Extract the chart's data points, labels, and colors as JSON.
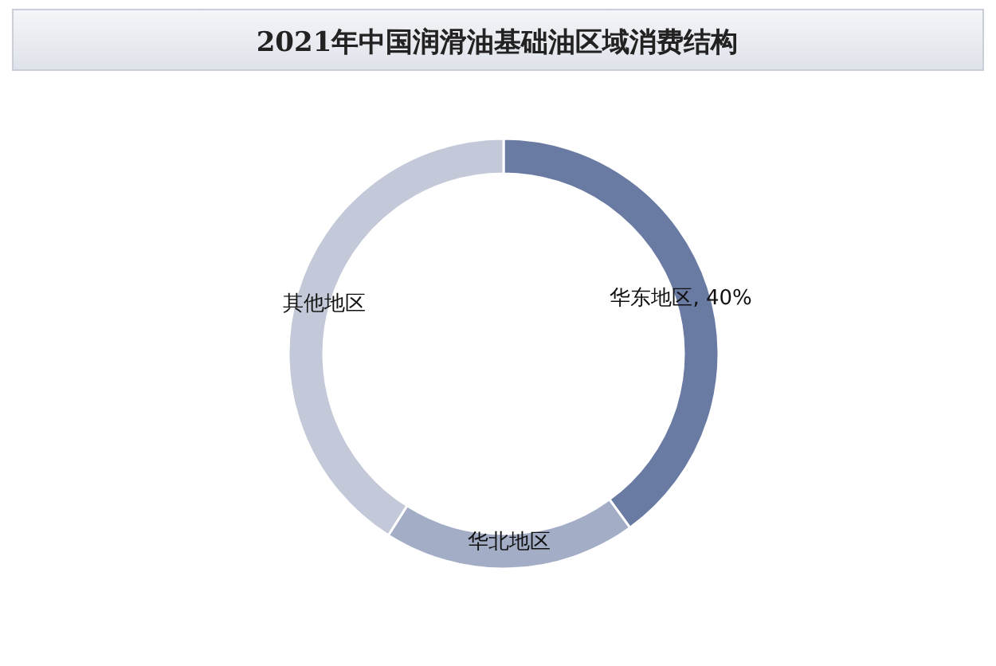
{
  "chart_data": {
    "type": "donut",
    "title": "2021年中国润滑油基础油区域消费结构",
    "categories": [
      "华东地区",
      "华北地区",
      "其他地区"
    ],
    "values": [
      40,
      19,
      41
    ],
    "colors": [
      "#6a7ba3",
      "#a3aec6",
      "#c3c9d8"
    ],
    "value_labels": [
      "40%",
      null,
      null
    ]
  }
}
